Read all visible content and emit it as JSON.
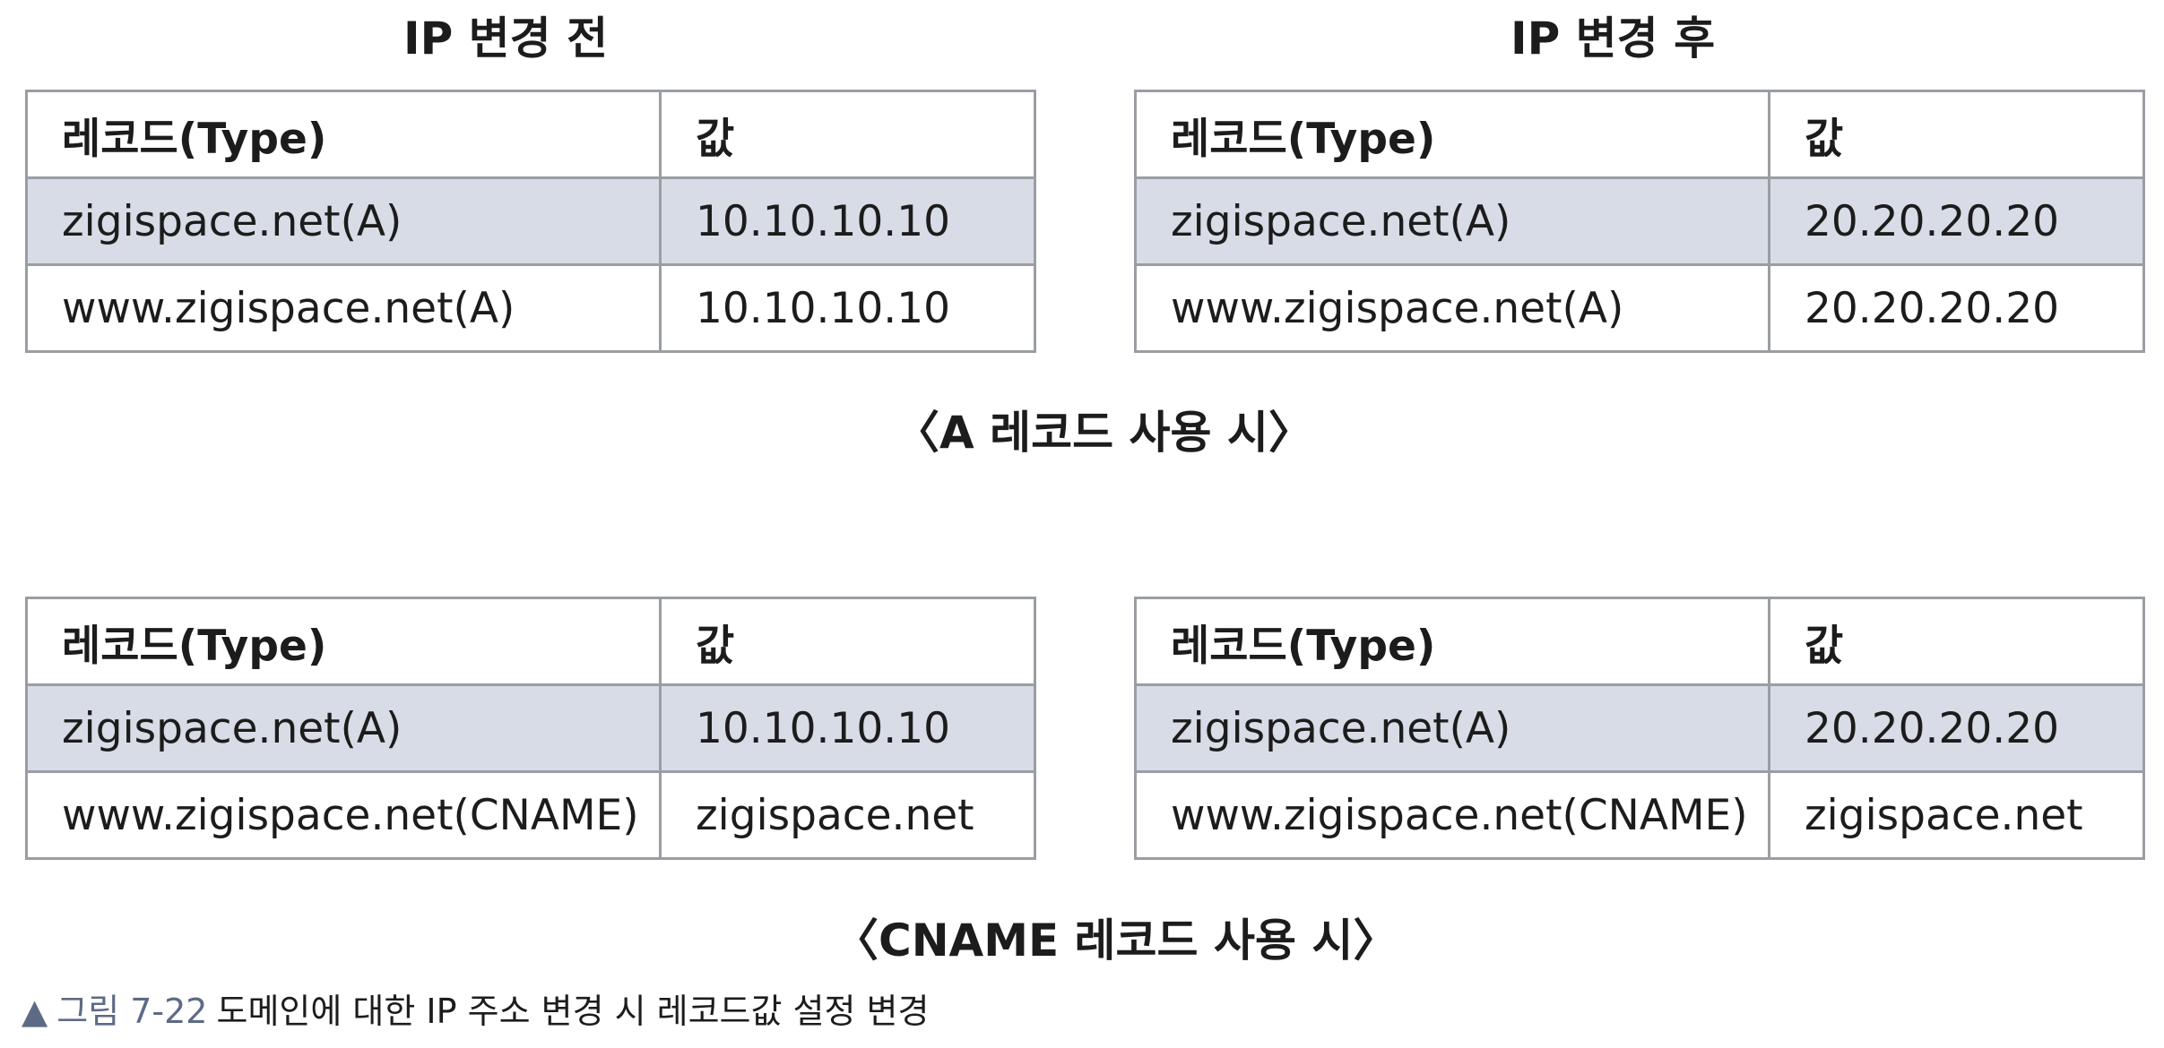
{
  "headings": {
    "before": "IP 변경 전",
    "after": "IP 변경 후"
  },
  "columns": {
    "record": "레코드(Type)",
    "value": "값"
  },
  "tables": {
    "a_before": {
      "rows": [
        {
          "record": "zigispace.net(A)",
          "value": "10.10.10.10"
        },
        {
          "record": "www.zigispace.net(A)",
          "value": "10.10.10.10"
        }
      ]
    },
    "a_after": {
      "rows": [
        {
          "record": "zigispace.net(A)",
          "value": "20.20.20.20"
        },
        {
          "record": "www.zigispace.net(A)",
          "value": "20.20.20.20"
        }
      ]
    },
    "cname_before": {
      "rows": [
        {
          "record": "zigispace.net(A)",
          "value": "10.10.10.10"
        },
        {
          "record": "www.zigispace.net(CNAME)",
          "value": "zigispace.net"
        }
      ]
    },
    "cname_after": {
      "rows": [
        {
          "record": "zigispace.net(A)",
          "value": "20.20.20.20"
        },
        {
          "record": "www.zigispace.net(CNAME)",
          "value": "zigispace.net"
        }
      ]
    }
  },
  "group_captions": {
    "a_record": "〈A 레코드 사용 시〉",
    "cname_record": "〈CNAME 레코드 사용 시〉"
  },
  "figure": {
    "marker": "▲",
    "number": "그림 7-22",
    "text": "도메인에 대한 IP 주소 변경 시 레코드값 설정 변경"
  },
  "colors": {
    "shaded_row": "#d8dce6",
    "border": "#9a9ea4",
    "caption_accent": "#5d6a86"
  }
}
